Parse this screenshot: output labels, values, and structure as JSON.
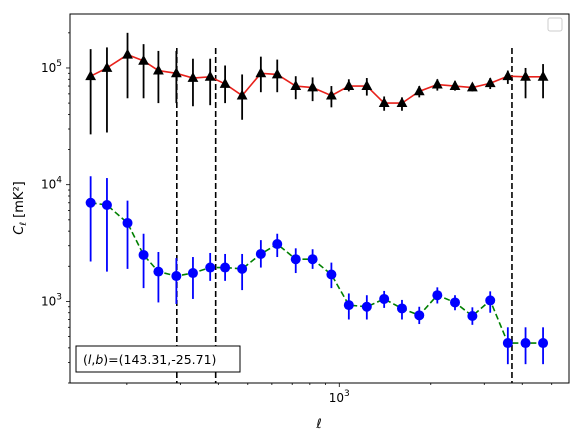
{
  "chart_data": {
    "type": "scatter",
    "title": "",
    "xlabel": "ℓ",
    "ylabel": "Cℓ  [mK²]",
    "xscale": "log",
    "yscale": "log",
    "xlim": [
      130,
      5700
    ],
    "ylim": [
      200,
      290000
    ],
    "x_tick_labels": [
      {
        "value": 1000,
        "base": "10",
        "exp": "3"
      }
    ],
    "y_tick_labels": [
      {
        "value": 1000,
        "base": "10",
        "exp": "3"
      },
      {
        "value": 10000,
        "base": "10",
        "exp": "4"
      },
      {
        "value": 100000,
        "base": "10",
        "exp": "5"
      }
    ],
    "grid": false,
    "legend": {
      "placement": "top-right",
      "entries": []
    },
    "vertical_lines_x": [
      292,
      392,
      3700
    ],
    "annotation": "(l,b)=(143.31,-25.71)",
    "series": [
      {
        "marker": "triangle",
        "marker_color": "#000000",
        "errorbar_color": "#000000",
        "line_color": "#e8211b",
        "line_style": "solid",
        "x": [
          152,
          172,
          201,
          227,
          254,
          291,
          330,
          376,
          421,
          479,
          552,
          625,
          719,
          817,
          942,
          1075,
          1232,
          1405,
          1608,
          1833,
          2102,
          2403,
          2741,
          3138,
          3586,
          4101,
          4683
        ],
        "y": [
          85000,
          100000,
          130000,
          115000,
          95000,
          90000,
          82000,
          84000,
          73000,
          58000,
          90000,
          88000,
          70000,
          68000,
          58000,
          70000,
          70000,
          50000,
          50000,
          63000,
          72000,
          70000,
          68000,
          74000,
          85000,
          84000,
          84000
        ],
        "err_low": [
          27000,
          28000,
          55000,
          55000,
          50000,
          50000,
          47000,
          48000,
          50000,
          36000,
          62000,
          62000,
          54000,
          52000,
          46000,
          63000,
          58000,
          43000,
          43000,
          56000,
          64000,
          64000,
          63000,
          66000,
          73000,
          55000,
          55000
        ],
        "err_high": [
          145000,
          150000,
          200000,
          160000,
          140000,
          140000,
          120000,
          120000,
          105000,
          88000,
          125000,
          118000,
          85000,
          83000,
          70000,
          80000,
          82000,
          57000,
          56000,
          70000,
          80000,
          77000,
          74000,
          82000,
          95000,
          100000,
          108000
        ]
      },
      {
        "marker": "circle",
        "marker_color": "#0000ff",
        "errorbar_color": "#0000ff",
        "line_color": "#008000",
        "line_style": "dashed",
        "x": [
          152,
          172,
          201,
          227,
          254,
          291,
          330,
          376,
          421,
          479,
          552,
          625,
          719,
          817,
          942,
          1075,
          1232,
          1405,
          1608,
          1833,
          2102,
          2403,
          2741,
          3138,
          3586,
          4101,
          4683
        ],
        "y": [
          7000,
          6700,
          4700,
          2500,
          1800,
          1650,
          1750,
          1950,
          1950,
          1900,
          2550,
          3100,
          2300,
          2300,
          1700,
          930,
          900,
          1050,
          870,
          760,
          1130,
          980,
          750,
          1020,
          440,
          440,
          440
        ],
        "err_low": [
          2200,
          1800,
          1900,
          1300,
          980,
          950,
          1050,
          1500,
          1500,
          1250,
          1950,
          2400,
          1750,
          1900,
          1300,
          700,
          700,
          880,
          700,
          640,
          960,
          840,
          630,
          800,
          290,
          290,
          290
        ],
        "err_high": [
          11800,
          11400,
          7300,
          3800,
          2650,
          2350,
          2400,
          2600,
          2550,
          2550,
          3350,
          3800,
          2850,
          2800,
          2150,
          1170,
          1130,
          1230,
          1030,
          900,
          1320,
          1130,
          890,
          1220,
          600,
          600,
          600
        ]
      }
    ]
  }
}
